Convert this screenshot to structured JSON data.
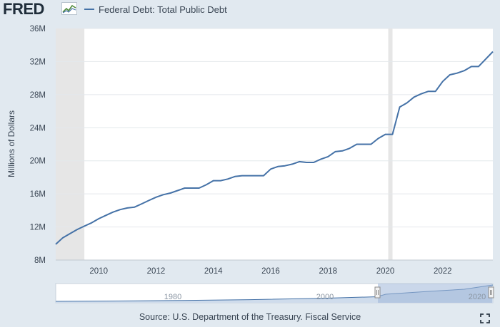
{
  "header": {
    "logo": "FRED",
    "legend_label": "Federal Debt: Total Public Debt",
    "series_color": "#4572a7"
  },
  "footer": {
    "source": "Source: U.S. Department of the Treasury. Fiscal Service"
  },
  "navigator": {
    "labels": [
      "1980",
      "2000",
      "2020"
    ]
  },
  "chart_data": {
    "type": "line",
    "title": "Federal Debt: Total Public Debt",
    "ylabel": "Millions of Dollars",
    "xlabel": "",
    "xlim": [
      2008.5,
      2023.75
    ],
    "ylim": [
      8,
      36
    ],
    "y_ticks": [
      8,
      12,
      16,
      20,
      24,
      28,
      32,
      36
    ],
    "y_tick_labels": [
      "8M",
      "12M",
      "16M",
      "20M",
      "24M",
      "28M",
      "32M",
      "36M"
    ],
    "x_ticks": [
      2010,
      2012,
      2014,
      2016,
      2018,
      2020,
      2022
    ],
    "x_tick_labels": [
      "2010",
      "2012",
      "2014",
      "2016",
      "2018",
      "2020",
      "2022"
    ],
    "recessions": [
      [
        2008.5,
        2009.5
      ],
      [
        2020.1,
        2020.25
      ]
    ],
    "grid": true,
    "series": [
      {
        "name": "Federal Debt: Total Public Debt",
        "x": [
          2008.5,
          2008.75,
          2009.0,
          2009.25,
          2009.5,
          2009.75,
          2010.0,
          2010.25,
          2010.5,
          2010.75,
          2011.0,
          2011.25,
          2011.5,
          2011.75,
          2012.0,
          2012.25,
          2012.5,
          2012.75,
          2013.0,
          2013.25,
          2013.5,
          2013.75,
          2014.0,
          2014.25,
          2014.5,
          2014.75,
          2015.0,
          2015.25,
          2015.5,
          2015.75,
          2016.0,
          2016.25,
          2016.5,
          2016.75,
          2017.0,
          2017.25,
          2017.5,
          2017.75,
          2018.0,
          2018.25,
          2018.5,
          2018.75,
          2019.0,
          2019.25,
          2019.5,
          2019.75,
          2020.0,
          2020.25,
          2020.5,
          2020.75,
          2021.0,
          2021.25,
          2021.5,
          2021.75,
          2022.0,
          2022.25,
          2022.5,
          2022.75,
          2023.0,
          2023.25,
          2023.5,
          2023.75
        ],
        "values": [
          9.9,
          10.7,
          11.2,
          11.7,
          12.1,
          12.5,
          13.0,
          13.4,
          13.8,
          14.1,
          14.3,
          14.4,
          14.8,
          15.2,
          15.6,
          15.9,
          16.1,
          16.4,
          16.7,
          16.7,
          16.7,
          17.1,
          17.6,
          17.6,
          17.8,
          18.1,
          18.2,
          18.2,
          18.2,
          18.2,
          19.0,
          19.3,
          19.4,
          19.6,
          19.9,
          19.8,
          19.8,
          20.2,
          20.5,
          21.1,
          21.2,
          21.5,
          22.0,
          22.0,
          22.0,
          22.7,
          23.2,
          23.2,
          26.5,
          27.0,
          27.7,
          28.1,
          28.4,
          28.4,
          29.6,
          30.4,
          30.6,
          30.9,
          31.4,
          31.4,
          32.3,
          33.2
        ]
      }
    ]
  }
}
